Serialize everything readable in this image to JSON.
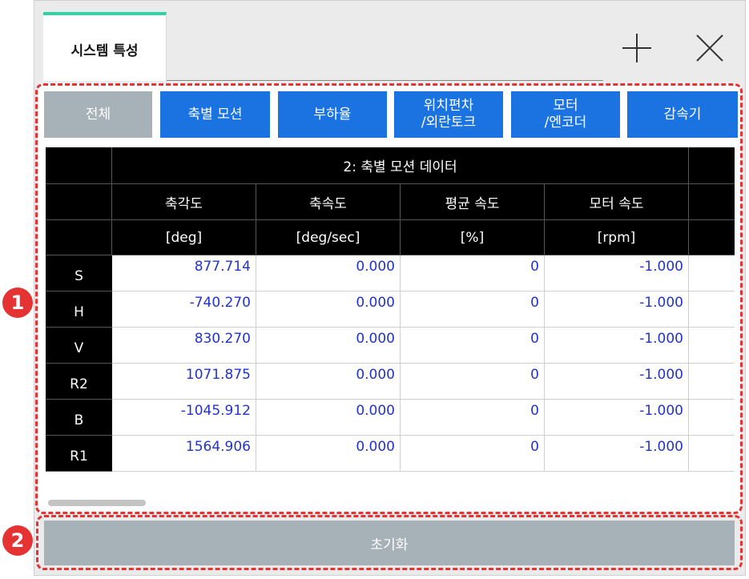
{
  "window": {
    "tab_title": "시스템 특성",
    "add_icon": "plus-icon",
    "close_icon": "close-icon"
  },
  "categories": [
    {
      "label": "전체",
      "active": true
    },
    {
      "label": "축별 모션",
      "active": false
    },
    {
      "label": "부하율",
      "active": false
    },
    {
      "label": "위치편차\n/외란토크",
      "active": false
    },
    {
      "label": "모터\n/엔코더",
      "active": false
    },
    {
      "label": "감속기",
      "active": false
    }
  ],
  "table": {
    "group_title": "2: 축별 모션 데이터",
    "columns": [
      {
        "name": "축각도",
        "unit": "[deg]"
      },
      {
        "name": "축속도",
        "unit": "[deg/sec]"
      },
      {
        "name": "평균 속도",
        "unit": "[%]"
      },
      {
        "name": "모터 속도",
        "unit": "[rpm]"
      }
    ],
    "rows": [
      {
        "axis": "S",
        "values": [
          "877.714",
          "0.000",
          "0",
          "-1.000"
        ]
      },
      {
        "axis": "H",
        "values": [
          "-740.270",
          "0.000",
          "0",
          "-1.000"
        ]
      },
      {
        "axis": "V",
        "values": [
          "830.270",
          "0.000",
          "0",
          "-1.000"
        ]
      },
      {
        "axis": "R2",
        "values": [
          "1071.875",
          "0.000",
          "0",
          "-1.000"
        ]
      },
      {
        "axis": "B",
        "values": [
          "-1045.912",
          "0.000",
          "0",
          "-1.000"
        ]
      },
      {
        "axis": "R1",
        "values": [
          "1564.906",
          "0.000",
          "0",
          "-1.000"
        ]
      }
    ]
  },
  "reset_button": "초기화",
  "callouts": [
    "1",
    "2"
  ],
  "colors": {
    "accent_blue": "#1a73e0",
    "inactive_gray": "#a7b1b8",
    "tab_accent": "#2fd2a3",
    "callout_red": "#e53232",
    "value_blue": "#2233cc"
  }
}
